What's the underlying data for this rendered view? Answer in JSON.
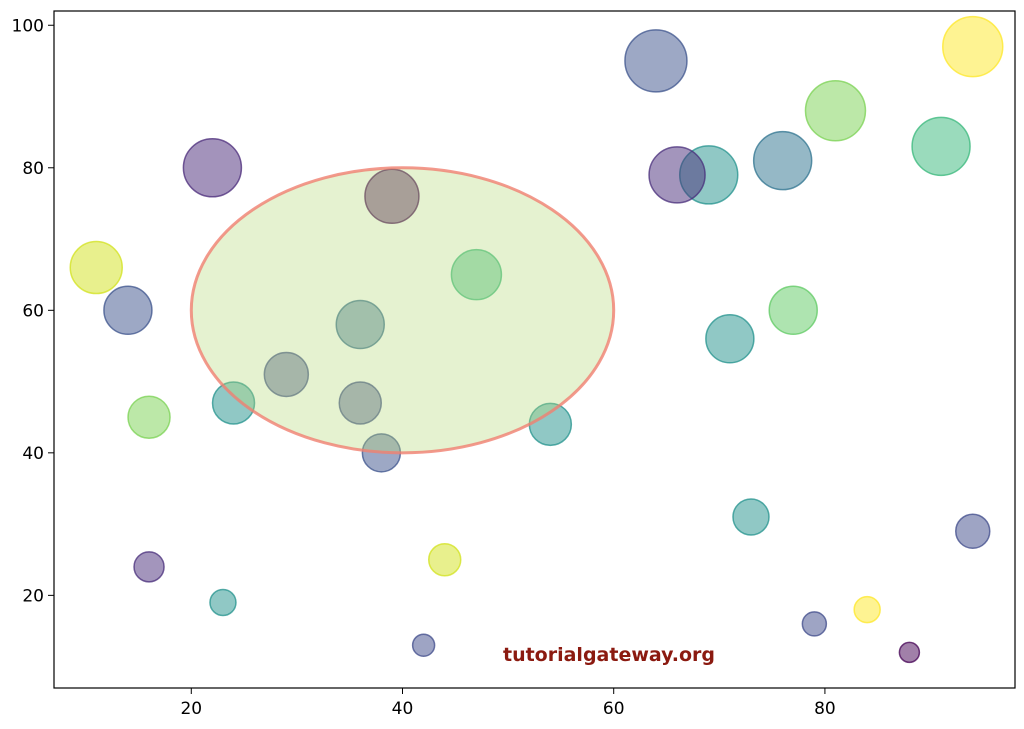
{
  "colors": {
    "background": "#ffffff",
    "axes": "#000000",
    "ellipse_fill": "#b5d978",
    "ellipse_edge": "#f08070",
    "watermark": "#8b1a10"
  },
  "watermark": {
    "text": "tutorialgateway.org"
  },
  "chart_data": {
    "type": "scatter",
    "title": "",
    "xlabel": "",
    "ylabel": "",
    "xlim": [
      7,
      98
    ],
    "ylim": [
      7,
      102
    ],
    "xticks": [
      20,
      40,
      60,
      80
    ],
    "yticks": [
      20,
      40,
      60,
      80,
      100
    ],
    "grid": false,
    "legend": "none",
    "marker_alpha": 0.5,
    "points": [
      {
        "x": 94,
        "y": 97,
        "size": 30,
        "color": "#fde725"
      },
      {
        "x": 64,
        "y": 95,
        "size": 31,
        "color": "#3b528b"
      },
      {
        "x": 81,
        "y": 88,
        "size": 30,
        "color": "#7ad151"
      },
      {
        "x": 91,
        "y": 83,
        "size": 29,
        "color": "#35b779"
      },
      {
        "x": 76,
        "y": 81,
        "size": 29,
        "color": "#2c728e"
      },
      {
        "x": 22,
        "y": 80,
        "size": 29,
        "color": "#482878"
      },
      {
        "x": 69,
        "y": 79,
        "size": 29,
        "color": "#21918c"
      },
      {
        "x": 66,
        "y": 79,
        "size": 28,
        "color": "#472c7a"
      },
      {
        "x": 39,
        "y": 76,
        "size": 27,
        "color": "#440154"
      },
      {
        "x": 11,
        "y": 66,
        "size": 26,
        "color": "#d2e21b"
      },
      {
        "x": 47,
        "y": 65,
        "size": 25,
        "color": "#35b779"
      },
      {
        "x": 14,
        "y": 60,
        "size": 24,
        "color": "#3b528b"
      },
      {
        "x": 77,
        "y": 60,
        "size": 24,
        "color": "#5ec962"
      },
      {
        "x": 36,
        "y": 58,
        "size": 24,
        "color": "#31688e"
      },
      {
        "x": 71,
        "y": 56,
        "size": 24,
        "color": "#21918c"
      },
      {
        "x": 29,
        "y": 51,
        "size": 22,
        "color": "#3e4989"
      },
      {
        "x": 24,
        "y": 47,
        "size": 21,
        "color": "#21918c"
      },
      {
        "x": 36,
        "y": 47,
        "size": 21,
        "color": "#3e4989"
      },
      {
        "x": 16,
        "y": 45,
        "size": 21,
        "color": "#7ad151"
      },
      {
        "x": 54,
        "y": 44,
        "size": 21,
        "color": "#21918c"
      },
      {
        "x": 38,
        "y": 40,
        "size": 19,
        "color": "#3b528b"
      },
      {
        "x": 73,
        "y": 31,
        "size": 18,
        "color": "#21918c"
      },
      {
        "x": 94,
        "y": 29,
        "size": 17,
        "color": "#3e4989"
      },
      {
        "x": 44,
        "y": 25,
        "size": 16,
        "color": "#d2e21b"
      },
      {
        "x": 16,
        "y": 24,
        "size": 15,
        "color": "#472c7a"
      },
      {
        "x": 23,
        "y": 19,
        "size": 13,
        "color": "#21918c"
      },
      {
        "x": 84,
        "y": 18,
        "size": 13,
        "color": "#fde725"
      },
      {
        "x": 79,
        "y": 16,
        "size": 12,
        "color": "#3e4989"
      },
      {
        "x": 42,
        "y": 13,
        "size": 11,
        "color": "#3e4989"
      },
      {
        "x": 88,
        "y": 12,
        "size": 10,
        "color": "#440154"
      }
    ],
    "annotations": [
      {
        "type": "ellipse",
        "cx": 40,
        "cy": 60,
        "width": 40,
        "height": 40,
        "fill_alpha": 0.35
      }
    ]
  }
}
